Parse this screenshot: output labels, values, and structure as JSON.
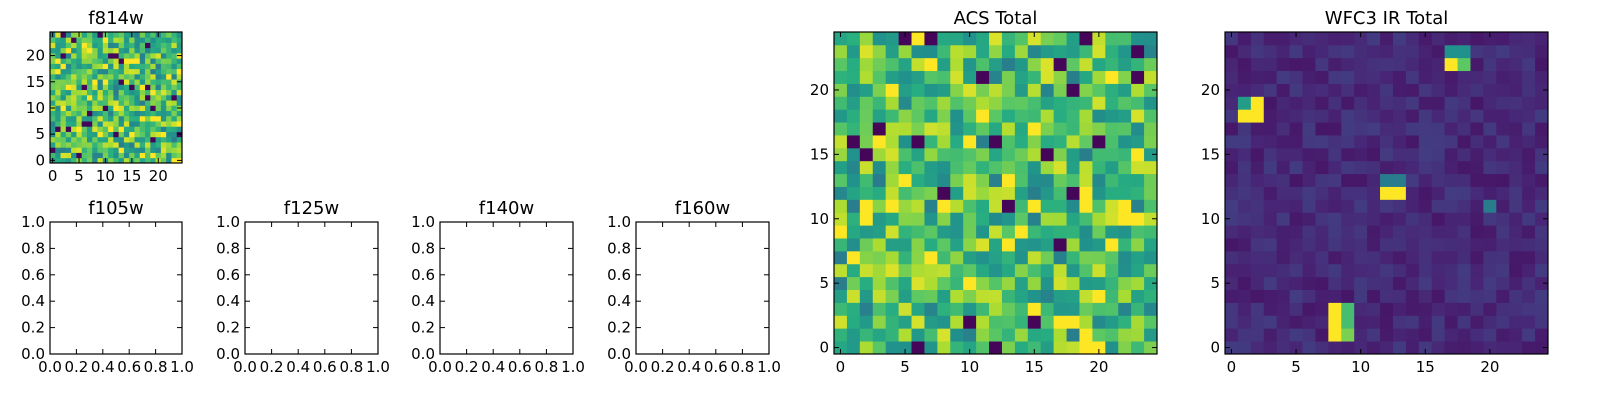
{
  "chart_data": [
    {
      "type": "heatmap",
      "title": "f814w",
      "grid": [
        25,
        25
      ],
      "colormap": "viridis",
      "xticks": [
        "0",
        "5",
        "10",
        "15",
        "20"
      ],
      "yticks": [
        "0",
        "5",
        "10",
        "15",
        "20"
      ],
      "xlim": [
        -0.5,
        24.5
      ],
      "ylim": [
        -0.5,
        24.5
      ]
    },
    {
      "type": "line",
      "title": "f105w",
      "xlim": [
        0.0,
        1.0
      ],
      "ylim": [
        0.0,
        1.0
      ],
      "xticks": [
        "0.0",
        "0.2",
        "0.4",
        "0.6",
        "0.8",
        "1.0"
      ],
      "yticks": [
        "0.0",
        "0.2",
        "0.4",
        "0.6",
        "0.8",
        "1.0"
      ],
      "series": []
    },
    {
      "type": "line",
      "title": "f125w",
      "xlim": [
        0.0,
        1.0
      ],
      "ylim": [
        0.0,
        1.0
      ],
      "xticks": [
        "0.0",
        "0.2",
        "0.4",
        "0.6",
        "0.8",
        "1.0"
      ],
      "yticks": [
        "0.0",
        "0.2",
        "0.4",
        "0.6",
        "0.8",
        "1.0"
      ],
      "series": []
    },
    {
      "type": "line",
      "title": "f140w",
      "xlim": [
        0.0,
        1.0
      ],
      "ylim": [
        0.0,
        1.0
      ],
      "xticks": [
        "0.0",
        "0.2",
        "0.4",
        "0.6",
        "0.8",
        "1.0"
      ],
      "yticks": [
        "0.0",
        "0.2",
        "0.4",
        "0.6",
        "0.8",
        "1.0"
      ],
      "series": []
    },
    {
      "type": "line",
      "title": "f160w",
      "xlim": [
        0.0,
        1.0
      ],
      "ylim": [
        0.0,
        1.0
      ],
      "xticks": [
        "0.0",
        "0.2",
        "0.4",
        "0.6",
        "0.8",
        "1.0"
      ],
      "yticks": [
        "0.0",
        "0.2",
        "0.4",
        "0.6",
        "0.8",
        "1.0"
      ],
      "series": []
    },
    {
      "type": "heatmap",
      "title": "ACS Total",
      "grid": [
        25,
        25
      ],
      "colormap": "viridis",
      "xticks": [
        "0",
        "5",
        "10",
        "15",
        "20"
      ],
      "yticks": [
        "0",
        "5",
        "10",
        "15",
        "20"
      ],
      "xlim": [
        -0.5,
        24.5
      ],
      "ylim": [
        -0.5,
        24.5
      ]
    },
    {
      "type": "heatmap",
      "title": "WFC3 IR Total",
      "grid": [
        25,
        25
      ],
      "colormap": "viridis",
      "xticks": [
        "0",
        "5",
        "10",
        "15",
        "20"
      ],
      "yticks": [
        "0",
        "5",
        "10",
        "15",
        "20"
      ],
      "xlim": [
        -0.5,
        24.5
      ],
      "ylim": [
        -0.5,
        24.5
      ],
      "hot_spots": [
        {
          "x": [
            1,
            2
          ],
          "y": [
            18,
            18
          ],
          "value": 1.0
        },
        {
          "x": [
            1,
            1
          ],
          "y": [
            19,
            19
          ],
          "value": 0.55
        },
        {
          "x": [
            2,
            2
          ],
          "y": [
            19,
            19
          ],
          "value": 1.0
        },
        {
          "x": [
            17,
            17
          ],
          "y": [
            22,
            22
          ],
          "value": 1.0
        },
        {
          "x": [
            18,
            18
          ],
          "y": [
            22,
            22
          ],
          "value": 0.75
        },
        {
          "x": [
            17,
            18
          ],
          "y": [
            23,
            23
          ],
          "value": 0.5
        },
        {
          "x": [
            12,
            13
          ],
          "y": [
            12,
            12
          ],
          "value": 1.0
        },
        {
          "x": [
            12,
            13
          ],
          "y": [
            13,
            13
          ],
          "value": 0.45
        },
        {
          "x": [
            8,
            8
          ],
          "y": [
            1,
            3
          ],
          "value": 1.0
        },
        {
          "x": [
            9,
            9
          ],
          "y": [
            1,
            1
          ],
          "value": 0.8
        },
        {
          "x": [
            9,
            9
          ],
          "y": [
            2,
            3
          ],
          "value": 0.7
        },
        {
          "x": [
            20,
            20
          ],
          "y": [
            11,
            11
          ],
          "value": 0.45
        }
      ]
    }
  ]
}
